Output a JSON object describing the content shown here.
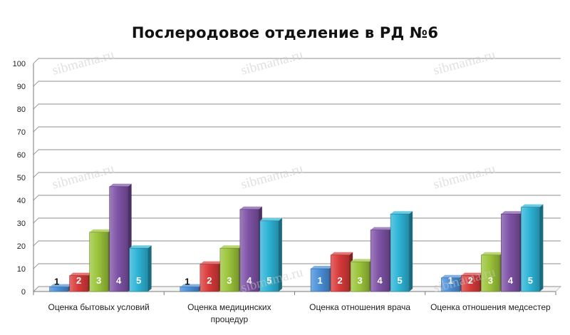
{
  "chart_data": {
    "type": "bar",
    "title": "Послеродовое отделение в РД №6",
    "categories": [
      [
        "Оценка бытовых условий"
      ],
      [
        "Оценка медицинских",
        "процедур"
      ],
      [
        "Оценка отношения врача"
      ],
      [
        "Оценка отношения медсестер"
      ]
    ],
    "series": [
      {
        "name": "1",
        "color": "#4a8fd9",
        "values": [
          2,
          2,
          10,
          6
        ]
      },
      {
        "name": "2",
        "color": "#d93a3a",
        "values": [
          7,
          12,
          16,
          7
        ]
      },
      {
        "name": "3",
        "color": "#9bc43a",
        "values": [
          26,
          19,
          13,
          16
        ]
      },
      {
        "name": "4",
        "color": "#7e52a6",
        "values": [
          46,
          36,
          27,
          34
        ]
      },
      {
        "name": "5",
        "color": "#2db3d6",
        "values": [
          19,
          31,
          34,
          37
        ]
      }
    ],
    "ylim": [
      0,
      100
    ],
    "ytick_step": 10,
    "grid": true,
    "xlabel": "",
    "ylabel": ""
  },
  "watermark": "sibmama.ru"
}
